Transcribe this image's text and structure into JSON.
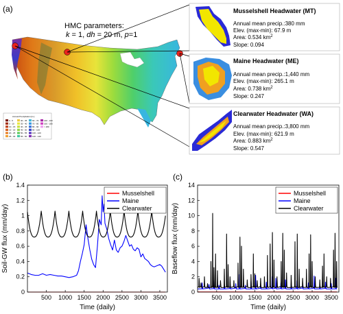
{
  "map_panel": {
    "letter": "(a)",
    "params_heading": "HMC parameters:",
    "params_line": {
      "k": "k",
      "k_val": " = 1, ",
      "dh": "dh",
      "dh_val": " = 20 m, ",
      "p": "p",
      "p_val": "=1"
    },
    "map_legend_title": "Annual Precipitation [in.]",
    "map_legend_items": [
      "0 - 5",
      "5 - 10",
      "10 - 15",
      "15 - 20",
      "20 - 25",
      "25 - 30",
      "30 - 35",
      "35 - 40",
      "40 - 45",
      "45 - 50",
      "50 - 55",
      "55 - 60",
      "60 - 70",
      "70 - 80",
      "80 - 90",
      "90 - 100",
      "100 - 120",
      "120 - 140",
      "140 - 160",
      "160 - 180",
      "> 180"
    ],
    "sites": [
      {
        "title": "Musselshell Headwater (MT)",
        "lines": [
          "Annual mean precip.:380 mm",
          "Elev. (max-min): 67.9 m"
        ],
        "area": "Area: 0.534 km",
        "slope": "Slope: 0.094"
      },
      {
        "title": "Maine Headwater (ME)",
        "lines": [
          "Annual mean precip.:1,440 mm",
          "Elev. (max-min): 265.1 m"
        ],
        "area": "Area: 0.738 km",
        "slope": "Slope: 0.247"
      },
      {
        "title": "Clearwater Headwater (WA)",
        "lines": [
          "Annual mean precip.:3,800 mm",
          "Elev. (max-min): 621.9 m"
        ],
        "area": "Area: 0.883 km",
        "slope": "Slope: 0.547"
      }
    ],
    "area_unit_sup": "2",
    "colors": {
      "marker": "#e8231d",
      "watershed_blue": "#2a2ad6",
      "watershed_yellow": "#f2e600",
      "watershed_orange": "#f0a020"
    }
  },
  "chart_data": [
    {
      "type": "line",
      "panel_letter": "(b)",
      "xlabel": "Time (daily)",
      "ylabel": "Soil-GW flux (mm/day)",
      "xlim": [
        0,
        3700
      ],
      "ylim": [
        0,
        1.4
      ],
      "xticks": [
        500,
        1000,
        1500,
        2000,
        2500,
        3000,
        3500
      ],
      "yticks": [
        0,
        0.2,
        0.4,
        0.6,
        0.8,
        1,
        1.2,
        1.4
      ],
      "ytick_labels": [
        "0",
        "0.2",
        "0.4",
        "0.6",
        "0.8",
        "1",
        "1.2",
        "1.4"
      ],
      "legend_position": "top-right",
      "series": [
        {
          "name": "Musselshell",
          "color": "#ff0000",
          "x": [
            0,
            3650
          ],
          "y": [
            0.0,
            0.0
          ]
        },
        {
          "name": "Maine",
          "color": "#0000ff",
          "x": [
            0,
            100,
            200,
            300,
            400,
            500,
            600,
            700,
            800,
            900,
            1000,
            1100,
            1200,
            1300,
            1350,
            1400,
            1450,
            1500,
            1550,
            1600,
            1650,
            1700,
            1750,
            1800,
            1850,
            1900,
            1950,
            1975,
            2000,
            2025,
            2050,
            2100,
            2150,
            2200,
            2250,
            2300,
            2350,
            2400,
            2450,
            2500,
            2550,
            2600,
            2650,
            2700,
            2750,
            2800,
            2850,
            2900,
            2950,
            3000,
            3050,
            3100,
            3150,
            3200,
            3250,
            3300,
            3350,
            3400,
            3450,
            3500,
            3550,
            3600,
            3650
          ],
          "y": [
            0.25,
            0.23,
            0.22,
            0.22,
            0.24,
            0.22,
            0.23,
            0.22,
            0.21,
            0.21,
            0.2,
            0.19,
            0.2,
            0.22,
            0.28,
            0.4,
            0.5,
            0.62,
            0.88,
            0.7,
            0.55,
            0.43,
            0.36,
            0.32,
            0.6,
            0.95,
            0.88,
            1.26,
            1.05,
            1.15,
            0.9,
            0.82,
            0.7,
            0.62,
            0.55,
            0.68,
            0.55,
            0.52,
            0.58,
            0.6,
            0.66,
            0.74,
            0.67,
            0.6,
            0.62,
            0.56,
            0.54,
            0.58,
            0.56,
            0.46,
            0.5,
            0.44,
            0.42,
            0.4,
            0.36,
            0.34,
            0.33,
            0.34,
            0.35,
            0.36,
            0.34,
            0.3,
            0.26
          ]
        },
        {
          "name": "Clearwater",
          "color": "#000000",
          "x": [
            0,
            180,
            365,
            545,
            730,
            910,
            1095,
            1275,
            1460,
            1640,
            1825,
            2005,
            2190,
            2370,
            2555,
            2735,
            2920,
            3100,
            3285,
            3465,
            3650
          ],
          "y": [
            1.05,
            0.72,
            1.06,
            0.72,
            1.06,
            0.72,
            1.06,
            0.72,
            1.06,
            0.72,
            1.06,
            0.72,
            1.06,
            0.72,
            1.06,
            0.72,
            1.06,
            0.72,
            1.06,
            0.72,
            1.0
          ]
        }
      ]
    },
    {
      "type": "line",
      "panel_letter": "(c)",
      "xlabel": "Time (daily)",
      "ylabel": "Baseflow flux (mm/day)",
      "xlim": [
        0,
        3700
      ],
      "ylim": [
        0,
        14
      ],
      "xticks": [
        500,
        1000,
        1500,
        2000,
        2500,
        3000,
        3500
      ],
      "yticks": [
        0,
        2,
        4,
        6,
        8,
        10,
        12,
        14
      ],
      "ytick_labels": [
        "0",
        "2",
        "4",
        "6",
        "8",
        "10",
        "12",
        "14"
      ],
      "legend_position": "top-right",
      "series": [
        {
          "name": "Musselshell",
          "color": "#ff0000",
          "x": [
            0,
            3650
          ],
          "y": [
            0.02,
            0.02
          ]
        },
        {
          "name": "Maine",
          "color": "#0000ff",
          "base": 0.4,
          "spikes": [
            [
              120,
              1.2
            ],
            [
              300,
              1.0
            ],
            [
              430,
              1.5
            ],
            [
              560,
              0.9
            ],
            [
              700,
              0.8
            ],
            [
              850,
              1.2
            ],
            [
              1000,
              1.1
            ],
            [
              1100,
              2.3
            ],
            [
              1250,
              0.9
            ],
            [
              1400,
              1.4
            ],
            [
              1520,
              2.2
            ],
            [
              1650,
              1.0
            ],
            [
              1800,
              1.3
            ],
            [
              1950,
              2.0
            ],
            [
              2050,
              1.8
            ],
            [
              2180,
              1.2
            ],
            [
              2300,
              1.6
            ],
            [
              2450,
              1.1
            ],
            [
              2600,
              1.5
            ],
            [
              2750,
              1.3
            ],
            [
              2900,
              1.2
            ],
            [
              3050,
              2.1
            ],
            [
              3200,
              1.0
            ],
            [
              3350,
              1.3
            ],
            [
              3500,
              1.1
            ],
            [
              3620,
              1.8
            ]
          ]
        },
        {
          "name": "Clearwater",
          "color": "#000000",
          "base": 0.6,
          "spikes": [
            [
              40,
              1.8
            ],
            [
              90,
              1.2
            ],
            [
              180,
              2.0
            ],
            [
              260,
              1.1
            ],
            [
              350,
              4.0
            ],
            [
              395,
              10.3
            ],
            [
              430,
              3.2
            ],
            [
              470,
              5.0
            ],
            [
              520,
              2.8
            ],
            [
              600,
              1.5
            ],
            [
              700,
              3.0
            ],
            [
              760,
              7.6
            ],
            [
              800,
              3.6
            ],
            [
              850,
              2.0
            ],
            [
              950,
              1.5
            ],
            [
              1060,
              3.8
            ],
            [
              1110,
              7.2
            ],
            [
              1150,
              6.0
            ],
            [
              1200,
              3.0
            ],
            [
              1300,
              1.6
            ],
            [
              1400,
              2.3
            ],
            [
              1460,
              5.0
            ],
            [
              1500,
              2.4
            ],
            [
              1560,
              1.5
            ],
            [
              1650,
              1.8
            ],
            [
              1750,
              2.0
            ],
            [
              1830,
              4.8
            ],
            [
              1900,
              6.3
            ],
            [
              1960,
              7.8
            ],
            [
              2000,
              4.2
            ],
            [
              2080,
              2.0
            ],
            [
              2190,
              4.0
            ],
            [
              2230,
              7.7
            ],
            [
              2270,
              5.5
            ],
            [
              2330,
              2.5
            ],
            [
              2450,
              2.2
            ],
            [
              2550,
              6.6
            ],
            [
              2610,
              7.6
            ],
            [
              2660,
              3.0
            ],
            [
              2750,
              1.8
            ],
            [
              2850,
              3.0
            ],
            [
              2920,
              5.0
            ],
            [
              2960,
              7.5
            ],
            [
              3000,
              4.0
            ],
            [
              3080,
              2.0
            ],
            [
              3200,
              1.6
            ],
            [
              3270,
              3.4
            ],
            [
              3310,
              5.0
            ],
            [
              3380,
              2.0
            ],
            [
              3480,
              1.8
            ],
            [
              3560,
              5.5
            ],
            [
              3600,
              7.7
            ],
            [
              3640,
              4.0
            ]
          ]
        }
      ]
    }
  ]
}
